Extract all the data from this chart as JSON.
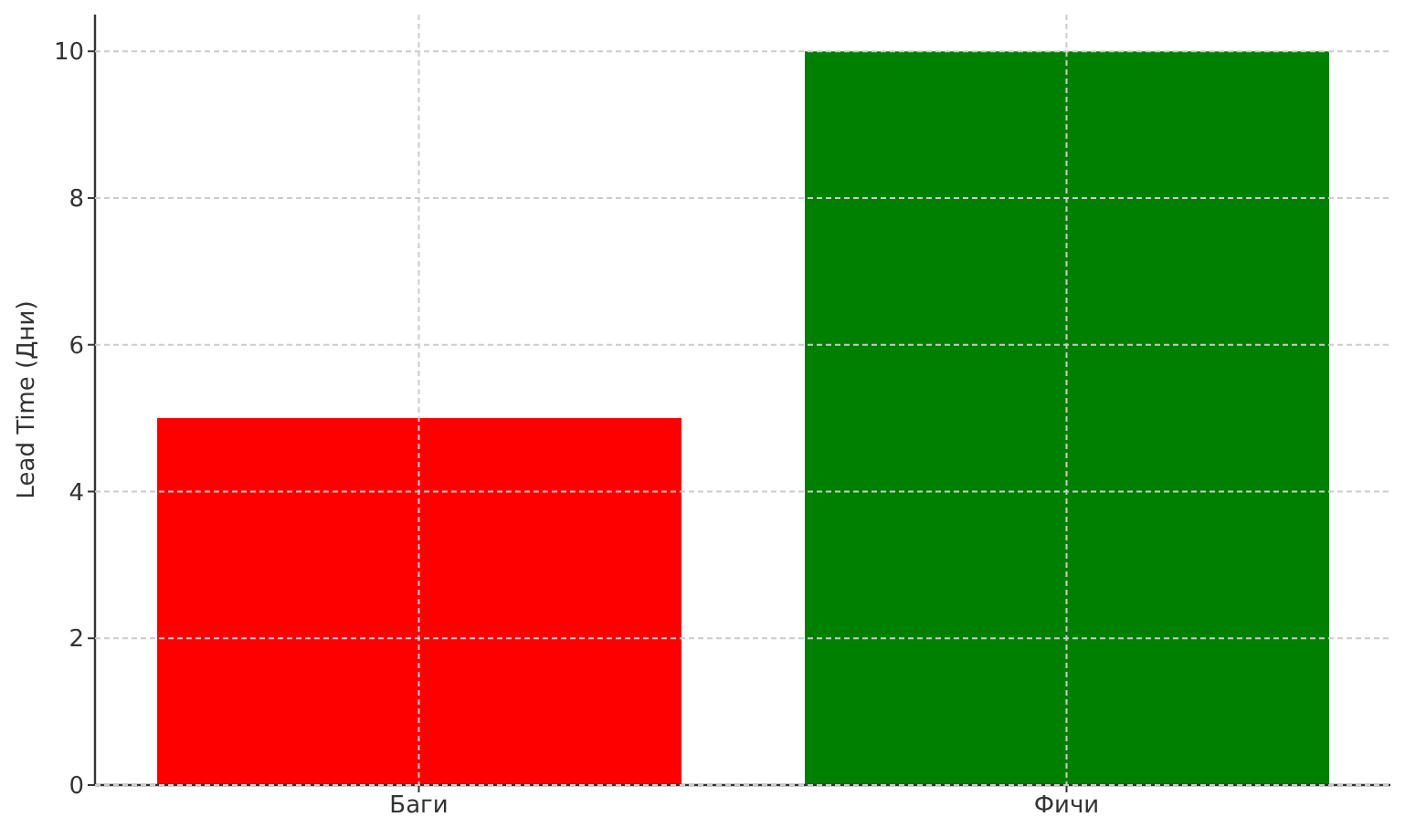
{
  "chart_data": {
    "type": "bar",
    "ylabel": "Lead Time (Дни)",
    "categories": [
      "Баги",
      "Фичи"
    ],
    "values": [
      5,
      10
    ],
    "colors": [
      "#ff0000",
      "#008000"
    ],
    "ylim": [
      0,
      10.5
    ],
    "yticks": [
      0,
      2,
      4,
      6,
      8,
      10
    ],
    "grid": true
  }
}
